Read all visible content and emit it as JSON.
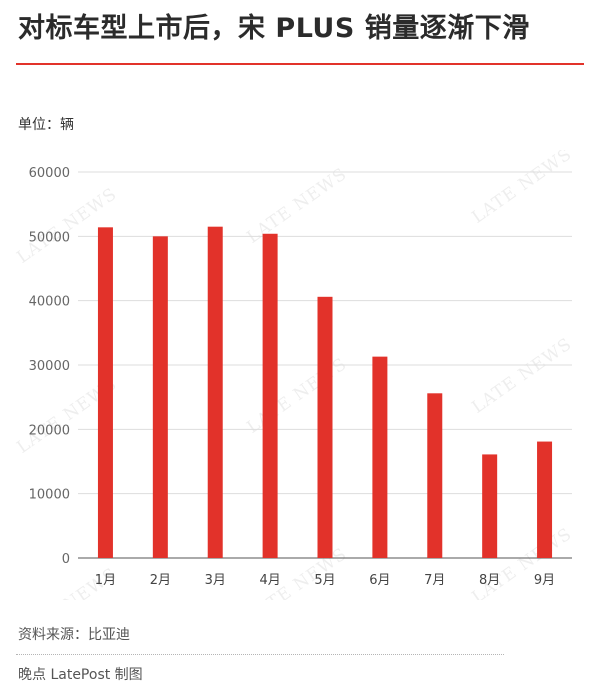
{
  "title": "对标车型上市后，宋 PLUS 销量逐渐下滑",
  "unit_label": "单位：辆",
  "source": "资料来源：比亚迪",
  "credit": "晚点 LatePost 制图",
  "watermark": "LATE NEWS",
  "colors": {
    "accent": "#e2322a",
    "bar": "#e2322a",
    "grid": "#dddddd",
    "axis": "#555555"
  },
  "chart_data": {
    "type": "bar",
    "categories": [
      "1月",
      "2月",
      "3月",
      "4月",
      "5月",
      "6月",
      "7月",
      "8月",
      "9月"
    ],
    "values": [
      51400,
      50000,
      51500,
      50400,
      40600,
      31300,
      25600,
      16100,
      18100
    ],
    "yticks": [
      0,
      10000,
      20000,
      30000,
      40000,
      50000,
      60000
    ],
    "ylim": [
      0,
      60000
    ],
    "ylabel": "单位：辆",
    "grid": true,
    "legend": "none"
  }
}
